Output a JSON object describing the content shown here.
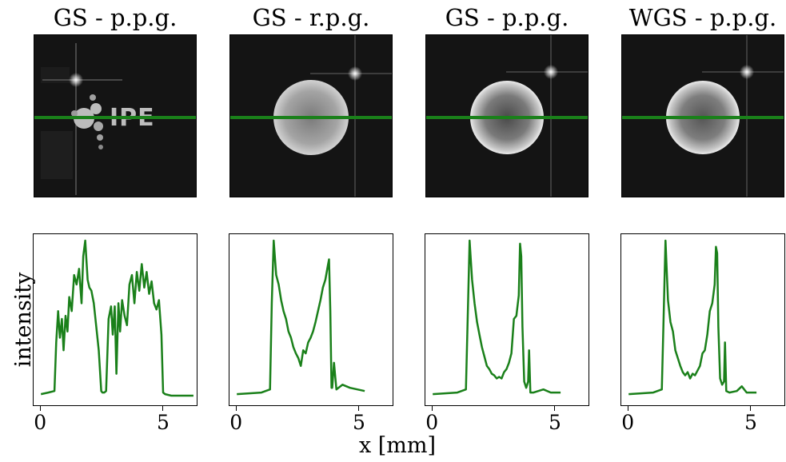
{
  "figure": {
    "xlabel": "x [mm]",
    "ylabel": "intensity",
    "logo_text": "IPE"
  },
  "panels": [
    {
      "title": "GS - p.p.g.",
      "image": "ipe-logo"
    },
    {
      "title": "GS - r.p.g.",
      "image": "disk"
    },
    {
      "title": "GS - p.p.g.",
      "image": "disk"
    },
    {
      "title": "WGS - p.p.g.",
      "image": "disk"
    }
  ],
  "colors": {
    "line": "#1a801a",
    "image_bg": "#141414",
    "cut_line": "#1a801a"
  },
  "chart_data": [
    {
      "type": "line",
      "title": "GS - p.p.g.",
      "xlabel": "x [mm]",
      "ylabel": "intensity",
      "xlim": [
        -0.3,
        6.4
      ],
      "xticks": [
        0,
        5
      ],
      "ylim": [
        0,
        1
      ],
      "yticks": [],
      "series": [
        {
          "x": [
            0,
            0.3,
            0.55,
            0.62,
            0.7,
            0.77,
            0.85,
            0.92,
            1.0,
            1.08,
            1.15,
            1.25,
            1.35,
            1.45,
            1.55,
            1.65,
            1.72,
            1.8,
            1.9,
            1.97,
            2.05,
            2.15,
            2.25,
            2.35,
            2.45,
            2.5,
            2.58,
            2.65,
            2.75,
            2.85,
            2.92,
            3.0,
            3.07,
            3.15,
            3.22,
            3.3,
            3.4,
            3.5,
            3.6,
            3.7,
            3.8,
            3.9,
            4.0,
            4.1,
            4.2,
            4.3,
            4.4,
            4.5,
            4.6,
            4.7,
            4.8,
            4.9,
            4.97,
            5.05,
            5.3,
            6.2
          ],
          "y": [
            0.02,
            0.03,
            0.04,
            0.35,
            0.55,
            0.38,
            0.5,
            0.3,
            0.52,
            0.42,
            0.64,
            0.55,
            0.78,
            0.72,
            0.82,
            0.6,
            0.9,
            1.0,
            0.75,
            0.7,
            0.68,
            0.6,
            0.45,
            0.3,
            0.04,
            0.03,
            0.03,
            0.04,
            0.5,
            0.58,
            0.4,
            0.58,
            0.15,
            0.6,
            0.42,
            0.62,
            0.52,
            0.46,
            0.72,
            0.78,
            0.6,
            0.8,
            0.68,
            0.85,
            0.7,
            0.8,
            0.66,
            0.74,
            0.6,
            0.56,
            0.62,
            0.4,
            0.03,
            0.02,
            0.01,
            0.01
          ]
        }
      ]
    },
    {
      "type": "line",
      "title": "GS - r.p.g.",
      "xlabel": "x [mm]",
      "ylabel": "intensity",
      "xlim": [
        -0.3,
        6.4
      ],
      "xticks": [
        0,
        5
      ],
      "ylim": [
        0,
        1
      ],
      "yticks": [],
      "series": [
        {
          "x": [
            0,
            1.0,
            1.35,
            1.42,
            1.5,
            1.6,
            1.7,
            1.8,
            1.9,
            2.0,
            2.1,
            2.2,
            2.3,
            2.4,
            2.5,
            2.6,
            2.7,
            2.8,
            2.9,
            3.0,
            3.1,
            3.2,
            3.3,
            3.4,
            3.5,
            3.6,
            3.7,
            3.75,
            3.8,
            3.85,
            3.88,
            3.95,
            4.05,
            4.3,
            4.6,
            4.9,
            5.2
          ],
          "y": [
            0.02,
            0.03,
            0.05,
            0.6,
            1.0,
            0.78,
            0.72,
            0.62,
            0.55,
            0.5,
            0.42,
            0.38,
            0.32,
            0.28,
            0.25,
            0.2,
            0.3,
            0.28,
            0.35,
            0.38,
            0.42,
            0.48,
            0.55,
            0.62,
            0.7,
            0.75,
            0.84,
            0.88,
            0.55,
            0.06,
            0.06,
            0.22,
            0.05,
            0.08,
            0.06,
            0.05,
            0.04
          ]
        }
      ]
    },
    {
      "type": "line",
      "title": "GS - p.p.g.",
      "xlabel": "x [mm]",
      "ylabel": "intensity",
      "xlim": [
        -0.3,
        6.4
      ],
      "xticks": [
        0,
        5
      ],
      "ylim": [
        0,
        1
      ],
      "yticks": [],
      "series": [
        {
          "x": [
            0,
            1.0,
            1.35,
            1.42,
            1.5,
            1.6,
            1.7,
            1.8,
            1.9,
            2.0,
            2.1,
            2.2,
            2.3,
            2.4,
            2.5,
            2.6,
            2.7,
            2.8,
            2.9,
            3.0,
            3.1,
            3.2,
            3.3,
            3.4,
            3.5,
            3.55,
            3.6,
            3.65,
            3.72,
            3.8,
            3.88,
            3.92,
            3.97,
            4.1,
            4.5,
            4.8,
            5.2
          ],
          "y": [
            0.02,
            0.03,
            0.05,
            0.5,
            1.0,
            0.75,
            0.6,
            0.48,
            0.4,
            0.32,
            0.26,
            0.2,
            0.18,
            0.15,
            0.14,
            0.12,
            0.13,
            0.12,
            0.16,
            0.18,
            0.22,
            0.28,
            0.5,
            0.52,
            0.65,
            0.98,
            0.9,
            0.45,
            0.1,
            0.06,
            0.1,
            0.3,
            0.03,
            0.03,
            0.05,
            0.03,
            0.03
          ]
        }
      ]
    },
    {
      "type": "line",
      "title": "WGS - p.p.g.",
      "xlabel": "x [mm]",
      "ylabel": "intensity",
      "xlim": [
        -0.3,
        6.4
      ],
      "xticks": [
        0,
        5
      ],
      "ylim": [
        0,
        1
      ],
      "yticks": [],
      "series": [
        {
          "x": [
            0,
            1.0,
            1.35,
            1.42,
            1.5,
            1.6,
            1.7,
            1.8,
            1.9,
            2.0,
            2.1,
            2.2,
            2.3,
            2.4,
            2.5,
            2.6,
            2.7,
            2.8,
            2.9,
            3.0,
            3.1,
            3.2,
            3.3,
            3.4,
            3.5,
            3.55,
            3.6,
            3.65,
            3.72,
            3.8,
            3.88,
            3.92,
            3.97,
            4.1,
            4.4,
            4.6,
            4.8,
            5.2
          ],
          "y": [
            0.02,
            0.03,
            0.05,
            0.5,
            1.0,
            0.62,
            0.48,
            0.42,
            0.3,
            0.25,
            0.2,
            0.16,
            0.14,
            0.16,
            0.12,
            0.15,
            0.14,
            0.17,
            0.2,
            0.28,
            0.3,
            0.4,
            0.55,
            0.6,
            0.72,
            0.96,
            0.92,
            0.45,
            0.12,
            0.08,
            0.1,
            0.35,
            0.04,
            0.03,
            0.04,
            0.07,
            0.03,
            0.03
          ]
        }
      ]
    }
  ]
}
